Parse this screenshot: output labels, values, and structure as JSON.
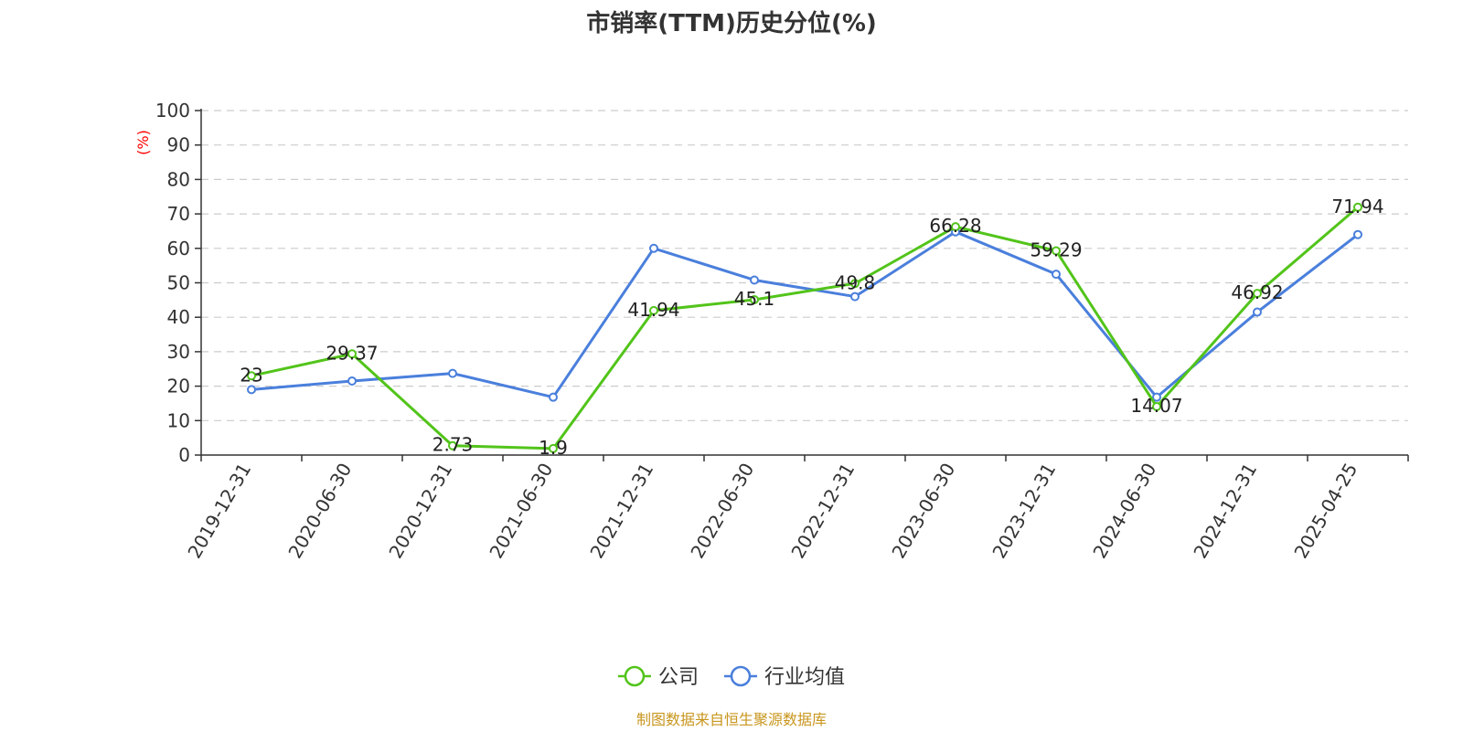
{
  "chart_data": {
    "type": "line",
    "title": "市销率(TTM)历史分位(%)",
    "ylabel": "(%)",
    "xlabel": "",
    "ylim": [
      0,
      100
    ],
    "yticks": [
      0,
      10,
      20,
      30,
      40,
      50,
      60,
      70,
      80,
      90,
      100
    ],
    "grid": true,
    "legend_position": "bottom",
    "categories": [
      "2019-12-31",
      "2020-06-30",
      "2020-12-31",
      "2021-06-30",
      "2021-12-31",
      "2022-06-30",
      "2022-12-31",
      "2023-06-30",
      "2023-12-31",
      "2024-06-30",
      "2024-12-31",
      "2025-04-25"
    ],
    "series": [
      {
        "name": "公司",
        "color": "#52c41a",
        "values": [
          23,
          29.37,
          2.73,
          1.9,
          41.94,
          45.1,
          49.8,
          66.28,
          59.29,
          14.07,
          46.92,
          71.94
        ],
        "labels": [
          "23",
          "29.37",
          "2.73",
          "1.9",
          "41.94",
          "45.1",
          "49.8",
          "66.28",
          "59.29",
          "14.07",
          "46.92",
          "71.94"
        ]
      },
      {
        "name": "行业均值",
        "color": "#4a7fdc",
        "values": [
          19,
          21.5,
          23.7,
          16.8,
          60,
          50.8,
          46,
          64.8,
          52.5,
          16.8,
          41.5,
          64
        ]
      }
    ],
    "source": "制图数据来自恒生聚源数据库",
    "source_color": "#c8961e"
  }
}
